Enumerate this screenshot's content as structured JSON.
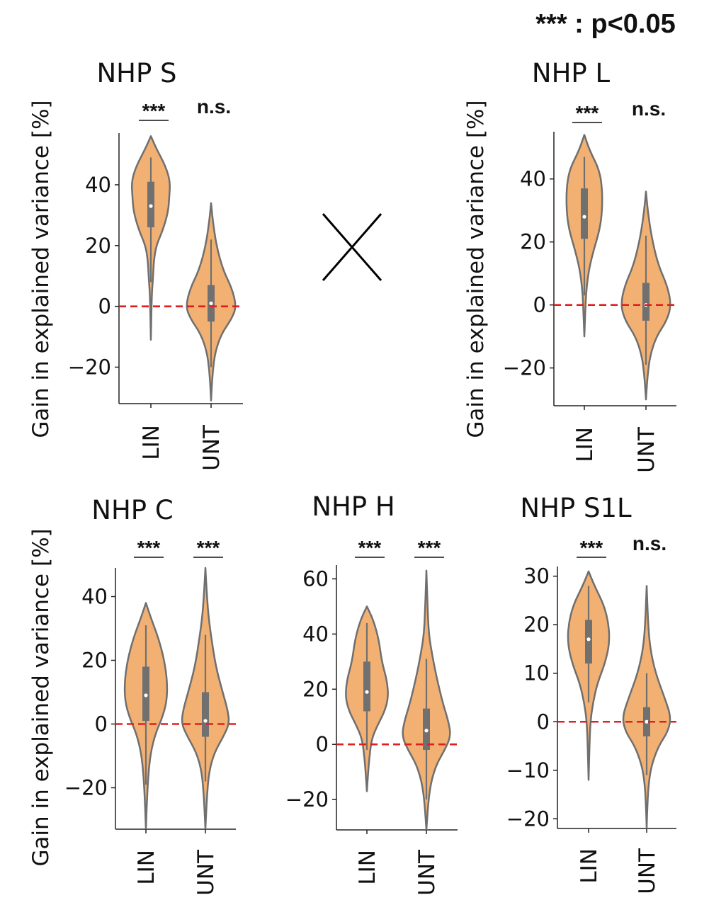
{
  "legend": "*** : p<0.05",
  "chart_data": [
    {
      "type": "violin",
      "title": "NHP S",
      "ylabel": "Gain in explained variance [%]",
      "categories": [
        "LIN",
        "UNT"
      ],
      "yticks": [
        -20,
        0,
        20,
        40
      ],
      "ylim": [
        -32,
        57
      ],
      "reference_line": 0,
      "significance": [
        "***",
        "n.s."
      ],
      "series": [
        {
          "name": "LIN",
          "median": 33,
          "q1": 26,
          "q3": 41,
          "whisker_low": 8,
          "whisker_high": 49,
          "min": -11,
          "max": 56,
          "shape": [
            [
              56,
              0
            ],
            [
              52,
              0.18
            ],
            [
              46,
              0.5
            ],
            [
              41,
              0.65
            ],
            [
              36,
              0.62
            ],
            [
              31,
              0.58
            ],
            [
              25,
              0.4
            ],
            [
              20,
              0.18
            ],
            [
              15,
              0.1
            ],
            [
              9,
              0.07
            ],
            [
              4,
              0.03
            ],
            [
              -11,
              0
            ]
          ]
        },
        {
          "name": "UNT",
          "median": 1,
          "q1": -5,
          "q3": 7,
          "whisker_low": -20,
          "whisker_high": 22,
          "min": -31,
          "max": 34,
          "shape": [
            [
              34,
              0
            ],
            [
              28,
              0.06
            ],
            [
              20,
              0.18
            ],
            [
              12,
              0.4
            ],
            [
              6,
              0.7
            ],
            [
              0,
              0.85
            ],
            [
              -4,
              0.7
            ],
            [
              -9,
              0.35
            ],
            [
              -15,
              0.14
            ],
            [
              -21,
              0.06
            ],
            [
              -27,
              0.02
            ],
            [
              -31,
              0
            ]
          ]
        }
      ]
    },
    {
      "type": "violin",
      "title": "NHP L",
      "ylabel": "Gain in explained variance [%]",
      "categories": [
        "LIN",
        "UNT"
      ],
      "yticks": [
        -20,
        0,
        20,
        40
      ],
      "ylim": [
        -32,
        55
      ],
      "reference_line": 0,
      "significance": [
        "***",
        "n.s."
      ],
      "series": [
        {
          "name": "LIN",
          "median": 28,
          "q1": 21,
          "q3": 37,
          "whisker_low": 3,
          "whisker_high": 47,
          "min": -10,
          "max": 54,
          "shape": [
            [
              54,
              0
            ],
            [
              49,
              0.18
            ],
            [
              43,
              0.5
            ],
            [
              37,
              0.6
            ],
            [
              30,
              0.6
            ],
            [
              24,
              0.52
            ],
            [
              17,
              0.3
            ],
            [
              11,
              0.15
            ],
            [
              5,
              0.07
            ],
            [
              0,
              0.04
            ],
            [
              -10,
              0
            ]
          ]
        },
        {
          "name": "UNT",
          "median": 0,
          "q1": -5,
          "q3": 7,
          "whisker_low": -19,
          "whisker_high": 22,
          "min": -30,
          "max": 36,
          "shape": [
            [
              36,
              0
            ],
            [
              30,
              0.06
            ],
            [
              22,
              0.18
            ],
            [
              13,
              0.4
            ],
            [
              6,
              0.72
            ],
            [
              0,
              0.85
            ],
            [
              -5,
              0.7
            ],
            [
              -10,
              0.35
            ],
            [
              -16,
              0.14
            ],
            [
              -22,
              0.06
            ],
            [
              -27,
              0.02
            ],
            [
              -30,
              0
            ]
          ]
        }
      ]
    },
    {
      "type": "violin",
      "title": "NHP C",
      "ylabel": "Gain in explained variance [%]",
      "categories": [
        "LIN",
        "UNT"
      ],
      "yticks": [
        -20,
        0,
        20,
        40
      ],
      "ylim": [
        -33,
        49
      ],
      "reference_line": 0,
      "significance": [
        "***",
        "***"
      ],
      "series": [
        {
          "name": "LIN",
          "median": 9,
          "q1": 1,
          "q3": 18,
          "whisker_low": -19,
          "whisker_high": 31,
          "min": -33,
          "max": 38,
          "shape": [
            [
              38,
              0
            ],
            [
              33,
              0.18
            ],
            [
              27,
              0.42
            ],
            [
              20,
              0.62
            ],
            [
              13,
              0.72
            ],
            [
              7,
              0.7
            ],
            [
              2,
              0.55
            ],
            [
              -3,
              0.32
            ],
            [
              -9,
              0.16
            ],
            [
              -16,
              0.08
            ],
            [
              -25,
              0.03
            ],
            [
              -33,
              0
            ]
          ]
        },
        {
          "name": "UNT",
          "median": 1,
          "q1": -4,
          "q3": 10,
          "whisker_low": -18,
          "whisker_high": 28,
          "min": -33,
          "max": 49,
          "shape": [
            [
              49,
              0
            ],
            [
              42,
              0.04
            ],
            [
              34,
              0.1
            ],
            [
              27,
              0.2
            ],
            [
              18,
              0.35
            ],
            [
              10,
              0.58
            ],
            [
              4,
              0.76
            ],
            [
              0,
              0.8
            ],
            [
              -4,
              0.6
            ],
            [
              -9,
              0.3
            ],
            [
              -15,
              0.12
            ],
            [
              -23,
              0.05
            ],
            [
              -33,
              0
            ]
          ]
        }
      ]
    },
    {
      "type": "violin",
      "title": "NHP H",
      "ylabel": "",
      "categories": [
        "LIN",
        "UNT"
      ],
      "yticks": [
        -20,
        0,
        20,
        40,
        60
      ],
      "ylim": [
        -31,
        65
      ],
      "reference_line": 0,
      "significance": [
        "***",
        "***"
      ],
      "series": [
        {
          "name": "LIN",
          "median": 19,
          "q1": 12,
          "q3": 30,
          "whisker_low": -2,
          "whisker_high": 44,
          "min": -17,
          "max": 50,
          "shape": [
            [
              50,
              0
            ],
            [
              45,
              0.22
            ],
            [
              38,
              0.4
            ],
            [
              30,
              0.5
            ],
            [
              23,
              0.68
            ],
            [
              17,
              0.72
            ],
            [
              12,
              0.6
            ],
            [
              7,
              0.36
            ],
            [
              2,
              0.16
            ],
            [
              -5,
              0.08
            ],
            [
              -12,
              0.03
            ],
            [
              -17,
              0
            ]
          ]
        },
        {
          "name": "UNT",
          "median": 5,
          "q1": -2,
          "q3": 13,
          "whisker_low": -20,
          "whisker_high": 31,
          "min": -31,
          "max": 63,
          "shape": [
            [
              63,
              0
            ],
            [
              50,
              0.04
            ],
            [
              40,
              0.08
            ],
            [
              32,
              0.2
            ],
            [
              24,
              0.35
            ],
            [
              15,
              0.55
            ],
            [
              8,
              0.75
            ],
            [
              3,
              0.82
            ],
            [
              -2,
              0.62
            ],
            [
              -7,
              0.35
            ],
            [
              -13,
              0.17
            ],
            [
              -20,
              0.07
            ],
            [
              -31,
              0
            ]
          ]
        }
      ]
    },
    {
      "type": "violin",
      "title": "NHP S1L",
      "ylabel": "",
      "categories": [
        "LIN",
        "UNT"
      ],
      "yticks": [
        -20,
        -10,
        0,
        10,
        20,
        30
      ],
      "ylim": [
        -22,
        32
      ],
      "reference_line": 0,
      "significance": [
        "***",
        "n.s."
      ],
      "series": [
        {
          "name": "LIN",
          "median": 17,
          "q1": 12,
          "q3": 21,
          "whisker_low": 4,
          "whisker_high": 28,
          "min": -12,
          "max": 31,
          "shape": [
            [
              31,
              0
            ],
            [
              28,
              0.2
            ],
            [
              24,
              0.52
            ],
            [
              20,
              0.68
            ],
            [
              16,
              0.7
            ],
            [
              12,
              0.55
            ],
            [
              8,
              0.3
            ],
            [
              4,
              0.15
            ],
            [
              0,
              0.06
            ],
            [
              -5,
              0.03
            ],
            [
              -12,
              0
            ]
          ]
        },
        {
          "name": "UNT",
          "median": 0,
          "q1": -3,
          "q3": 3,
          "whisker_low": -11,
          "whisker_high": 10,
          "min": -22,
          "max": 28,
          "shape": [
            [
              28,
              0
            ],
            [
              20,
              0.05
            ],
            [
              15,
              0.12
            ],
            [
              10,
              0.3
            ],
            [
              5,
              0.6
            ],
            [
              1,
              0.82
            ],
            [
              -2,
              0.72
            ],
            [
              -5,
              0.4
            ],
            [
              -9,
              0.16
            ],
            [
              -13,
              0.06
            ],
            [
              -18,
              0.02
            ],
            [
              -22,
              0
            ]
          ]
        }
      ]
    }
  ]
}
